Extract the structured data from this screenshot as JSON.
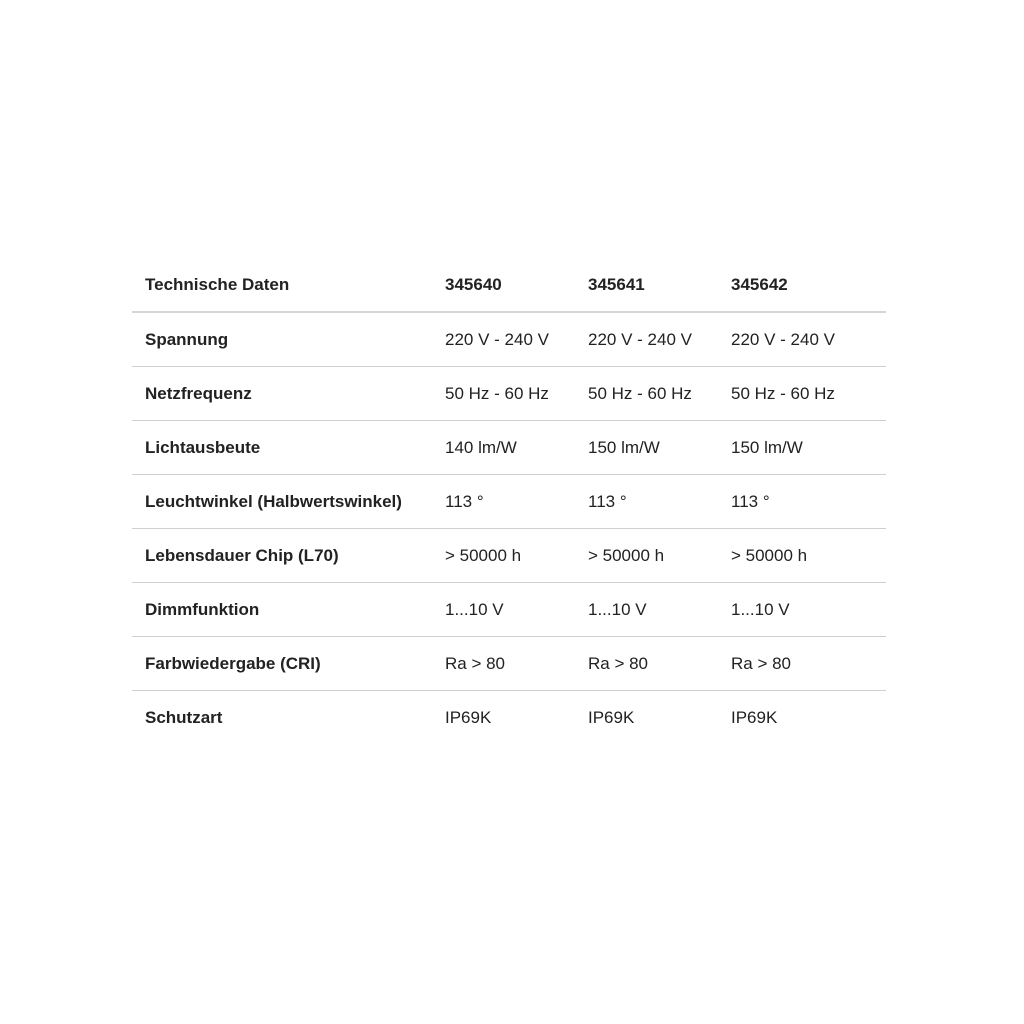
{
  "table": {
    "header": [
      "Technische Daten",
      "345640",
      "345641",
      "345642"
    ],
    "rows": [
      [
        "Spannung",
        "220 V - 240 V",
        "220 V - 240 V",
        "220 V - 240 V"
      ],
      [
        "Netzfrequenz",
        "50 Hz - 60 Hz",
        "50 Hz - 60 Hz",
        "50 Hz - 60 Hz"
      ],
      [
        "Lichtausbeute",
        "140 lm/W",
        "150 lm/W",
        "150 lm/W"
      ],
      [
        "Leuchtwinkel (Halbwertswinkel)",
        "113 °",
        "113 °",
        "113 °"
      ],
      [
        "Lebensdauer Chip (L70)",
        "> 50000 h",
        "> 50000 h",
        "> 50000 h"
      ],
      [
        "Dimmfunktion",
        "1...10 V",
        "1...10 V",
        "1...10 V"
      ],
      [
        "Farbwiedergabe (CRI)",
        "Ra > 80",
        "Ra > 80",
        "Ra > 80"
      ],
      [
        "Schutzart",
        "IP69K",
        "IP69K",
        "IP69K"
      ]
    ]
  }
}
